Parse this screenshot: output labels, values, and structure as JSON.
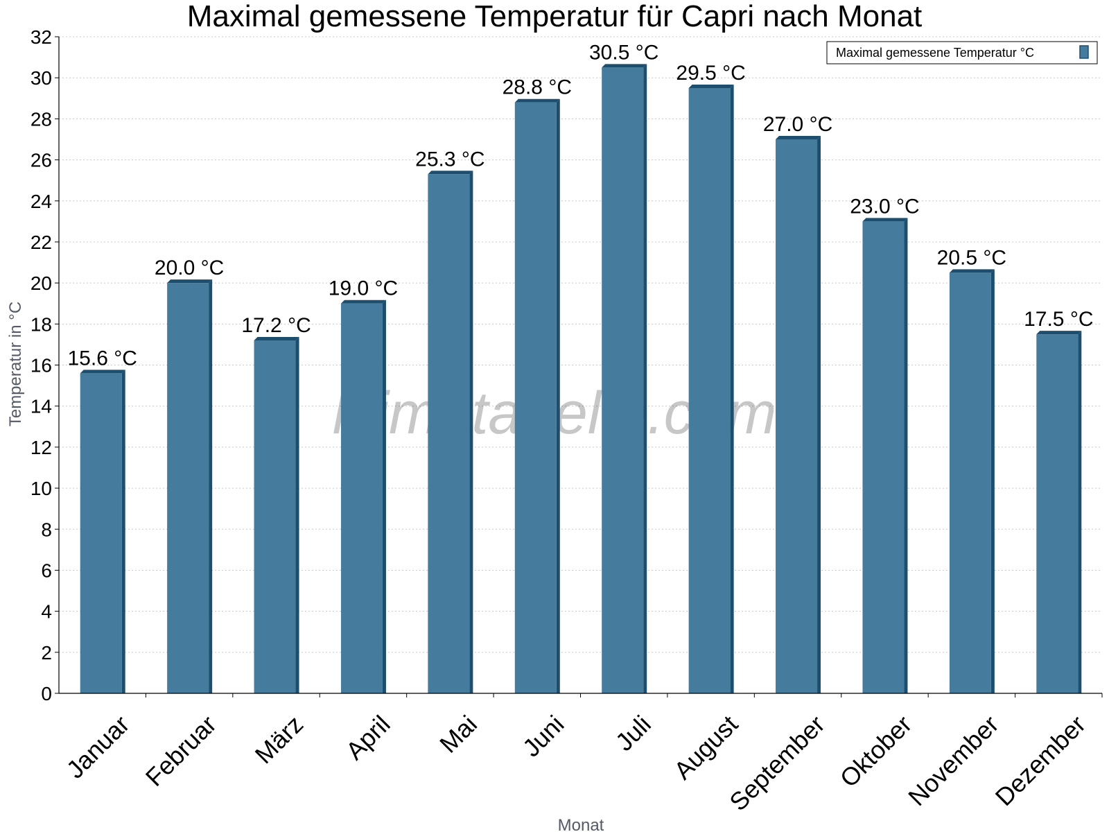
{
  "chart_data": {
    "type": "bar",
    "title": "Maximal gemessene Temperatur für Capri nach Monat",
    "xlabel": "Monat",
    "ylabel": "Temperatur in °C",
    "categories": [
      "Januar",
      "Februar",
      "März",
      "April",
      "Mai",
      "Juni",
      "Juli",
      "August",
      "September",
      "Oktober",
      "November",
      "Dezember"
    ],
    "series": [
      {
        "name": "Maximal gemessene Temperatur °C",
        "values": [
          15.6,
          20.0,
          17.2,
          19.0,
          25.3,
          28.8,
          30.5,
          29.5,
          27.0,
          23.0,
          20.5,
          17.5
        ],
        "value_labels": [
          "15.6 °C",
          "20.0 °C",
          "17.2 °C",
          "19.0 °C",
          "25.3 °C",
          "28.8 °C",
          "30.5 °C",
          "29.5 °C",
          "27.0 °C",
          "23.0 °C",
          "20.5 °C",
          "17.5 °C"
        ]
      }
    ],
    "ylim": [
      0,
      32
    ],
    "yticks": [
      0,
      2,
      4,
      6,
      8,
      10,
      12,
      14,
      16,
      18,
      20,
      22,
      24,
      26,
      28,
      30,
      32
    ],
    "grid": true,
    "legend_position": "top-right",
    "bar_color": "#457b9d",
    "bar_shadow_color": "#1d4e6e",
    "watermark": "klimatabelle.com"
  }
}
